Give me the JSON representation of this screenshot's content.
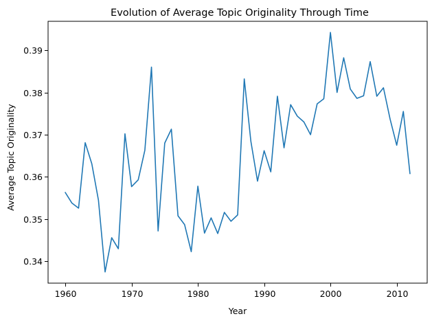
{
  "chart_data": {
    "type": "line",
    "title": "Evolution of Average Topic Originality Through Time",
    "xlabel": "Year",
    "ylabel": "Average Topic Originality",
    "xlim": [
      1957.4,
      2014.6
    ],
    "ylim": [
      0.33485,
      0.39684
    ],
    "xticks": [
      1960,
      1970,
      1980,
      1990,
      2000,
      2010
    ],
    "yticks": [
      0.34,
      0.35,
      0.36,
      0.37,
      0.38,
      0.39
    ],
    "grid": false,
    "legend": "none",
    "series": [
      {
        "color": "#1f77b4",
        "x": [
          1960,
          1961,
          1962,
          1963,
          1964,
          1965,
          1966,
          1967,
          1968,
          1969,
          1970,
          1971,
          1972,
          1973,
          1974,
          1975,
          1976,
          1977,
          1978,
          1979,
          1980,
          1981,
          1982,
          1983,
          1984,
          1985,
          1986,
          1987,
          1988,
          1989,
          1990,
          1991,
          1992,
          1993,
          1994,
          1995,
          1996,
          1997,
          1998,
          1999,
          2000,
          2001,
          2002,
          2003,
          2004,
          2005,
          2006,
          2007,
          2008,
          2009,
          2010,
          2011,
          2012
        ],
        "y": [
          0.3563,
          0.3538,
          0.3526,
          0.3681,
          0.3631,
          0.3545,
          0.3375,
          0.3456,
          0.343,
          0.3702,
          0.3577,
          0.3593,
          0.3663,
          0.386,
          0.3472,
          0.368,
          0.3713,
          0.3508,
          0.3487,
          0.3423,
          0.3578,
          0.3467,
          0.3503,
          0.3466,
          0.3516,
          0.3495,
          0.351,
          0.3832,
          0.3684,
          0.359,
          0.3662,
          0.3612,
          0.3791,
          0.3669,
          0.3771,
          0.3744,
          0.373,
          0.37,
          0.3773,
          0.3785,
          0.3942,
          0.38,
          0.3882,
          0.3808,
          0.3786,
          0.3792,
          0.3873,
          0.3791,
          0.3811,
          0.3737,
          0.3675,
          0.3755,
          0.3608
        ]
      }
    ]
  }
}
